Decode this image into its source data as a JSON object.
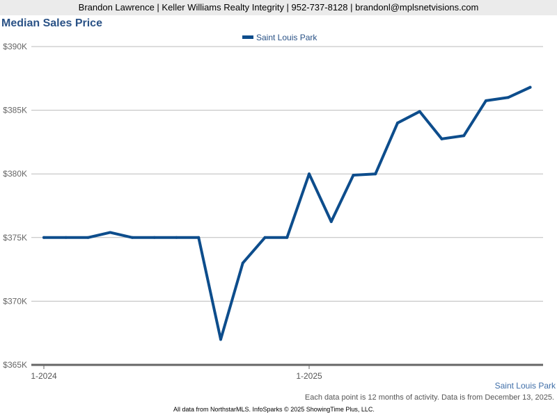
{
  "header": "Brandon Lawrence | Keller Williams Realty Integrity | 952-737-8128 | brandonl@mplsnetvisions.com",
  "source_label": "Saint Louis Park",
  "note": "Each data point is 12 months of activity. Data is from December 13, 2025.",
  "footer": "All data from NorthstarMLS. InfoSparks © 2025 ShowingTime Plus, LLC.",
  "chart_data": {
    "type": "line",
    "title": "Median Sales Price",
    "xlabel": "",
    "ylabel": "",
    "ylim": [
      365000,
      390000
    ],
    "yticks": [
      {
        "v": 390000,
        "label": "$390K"
      },
      {
        "v": 385000,
        "label": "$385K"
      },
      {
        "v": 380000,
        "label": "$380K"
      },
      {
        "v": 375000,
        "label": "$375K"
      },
      {
        "v": 370000,
        "label": "$370K"
      },
      {
        "v": 365000,
        "label": "$365K"
      }
    ],
    "xticks": [
      {
        "i": 0,
        "label": "1-2024"
      },
      {
        "i": 12,
        "label": "1-2025"
      }
    ],
    "x": [
      "1-2024",
      "2-2024",
      "3-2024",
      "4-2024",
      "5-2024",
      "6-2024",
      "7-2024",
      "8-2024",
      "9-2024",
      "10-2024",
      "11-2024",
      "12-2024",
      "1-2025",
      "2-2025",
      "3-2025",
      "4-2025",
      "5-2025",
      "6-2025",
      "7-2025",
      "8-2025",
      "9-2025",
      "10-2025",
      "11-2025"
    ],
    "series": [
      {
        "name": "Saint Louis Park",
        "color": "#0d4d8c",
        "values": [
          375000,
          375000,
          375000,
          375400,
          375000,
          375000,
          375000,
          375000,
          367000,
          373000,
          375000,
          375000,
          380000,
          376250,
          379900,
          380000,
          384000,
          384900,
          382750,
          383000,
          385750,
          386000,
          386800
        ]
      }
    ],
    "grid": true,
    "legend": "top-center"
  }
}
